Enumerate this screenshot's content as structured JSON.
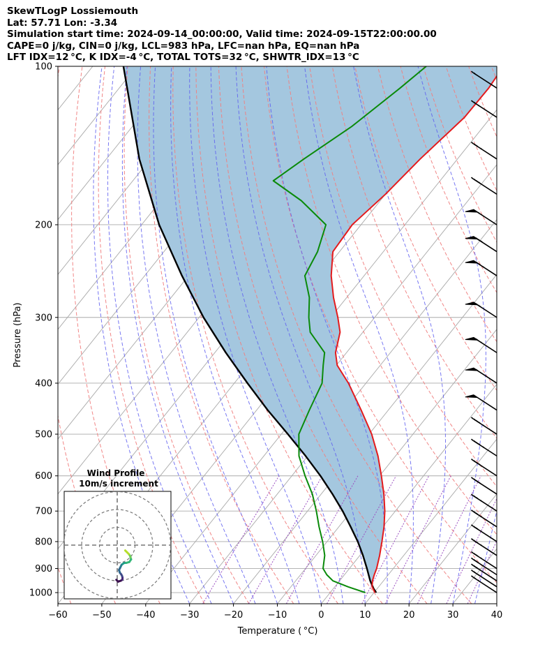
{
  "header": {
    "line1": "SkewTLogP Lossiemouth",
    "line2": "Lat: 57.71   Lon: -3.34",
    "line3": "Simulation start time: 2024-09-14_00:00:00, Valid time: 2024-09-15T22:00:00.00",
    "line4": "CAPE=0 j/kg, CIN=0 j/kg, LCL=983 hPa, LFC=nan hPa, EQ=nan hPa",
    "line5": "LFT IDX=12 °C, K IDX=-4 °C, TOTAL TOTS=32 °C, SHWTR_IDX=13 °C"
  },
  "chart_data": {
    "type": "skewt",
    "xlabel": "Temperature ( °C)",
    "ylabel": "Pressure (hPa)",
    "xlim": [
      -60,
      40
    ],
    "ylim": [
      1050,
      100
    ],
    "y_scale": "log",
    "x_ticks": [
      "−60",
      "−50",
      "−40",
      "−30",
      "−20",
      "−10",
      "0",
      "10",
      "20",
      "30",
      "40"
    ],
    "y_ticks": [
      "1000",
      "900",
      "800",
      "700",
      "600",
      "500",
      "400",
      "300",
      "200",
      "100"
    ],
    "temperature": {
      "pressure": [
        1000,
        975,
        950,
        925,
        900,
        850,
        800,
        750,
        700,
        650,
        600,
        550,
        500,
        450,
        400,
        370,
        350,
        320,
        300,
        275,
        250,
        225,
        200,
        175,
        150,
        125,
        110,
        100
      ],
      "values": [
        10.2,
        8.5,
        7.5,
        6.8,
        6.2,
        4.5,
        2.5,
        0.3,
        -2.4,
        -5.7,
        -9.6,
        -14.0,
        -19.4,
        -26.2,
        -34.0,
        -39.8,
        -42.5,
        -45.2,
        -48.4,
        -53.0,
        -57.5,
        -61.5,
        -62.0,
        -60.0,
        -58.5,
        -56.0,
        -55.8,
        -56.4
      ]
    },
    "dewpoint": {
      "pressure": [
        1000,
        975,
        950,
        925,
        900,
        850,
        800,
        750,
        700,
        650,
        600,
        550,
        500,
        450,
        400,
        370,
        350,
        320,
        300,
        275,
        250,
        225,
        200,
        180,
        165,
        150,
        130,
        110,
        100
      ],
      "values": [
        8.0,
        3.0,
        -1.5,
        -4.0,
        -6.0,
        -8.0,
        -11.0,
        -14.5,
        -18.0,
        -22.0,
        -27.0,
        -32.0,
        -36.0,
        -38.0,
        -40.0,
        -43.0,
        -45.0,
        -52.0,
        -55.0,
        -58.5,
        -63.5,
        -65.0,
        -68.0,
        -78.0,
        -88.0,
        -85.0,
        -80.0,
        -76.0,
        -74.0
      ]
    },
    "parcel": {
      "pressure": [
        1000,
        983,
        950,
        900,
        850,
        800,
        750,
        700,
        650,
        600,
        550,
        500,
        450,
        400,
        350,
        300,
        250,
        200,
        150,
        100
      ],
      "values": [
        10.5,
        9.2,
        7.0,
        4.0,
        0.7,
        -3.0,
        -7.3,
        -12.0,
        -17.4,
        -23.5,
        -30.5,
        -38.5,
        -47.5,
        -57.0,
        -67.5,
        -79.0,
        -91.5,
        -106.0,
        -122.5,
        -143.0
      ]
    },
    "wind_barbs": {
      "pressure": [
        1000,
        975,
        950,
        925,
        900,
        850,
        800,
        750,
        700,
        650,
        600,
        550,
        500,
        450,
        400,
        350,
        300,
        250,
        225,
        200,
        175,
        150,
        125,
        110
      ],
      "speed_kt": [
        25,
        25,
        30,
        30,
        35,
        35,
        35,
        35,
        35,
        40,
        40,
        45,
        45,
        50,
        60,
        65,
        70,
        75,
        80,
        55,
        40,
        35,
        25,
        20
      ]
    },
    "reference_lines": [
      "isotherms",
      "dry adiabats",
      "moist adiabats",
      "mixing ratio lines"
    ],
    "fill_between": "temperature and parcel",
    "inset": {
      "title_line1": "Wind Profile",
      "title_line2": "10m/s increment",
      "hodograph_u": [
        4.5,
        5.5,
        6.5,
        7.2,
        7.5,
        7.8,
        6.8,
        5.0,
        4.0,
        3.2,
        2.5,
        2.0,
        1.5,
        1.0,
        1.5,
        2.3,
        2.8,
        3.0,
        2.8,
        2.0,
        0.5,
        -0.5
      ],
      "hodograph_v": [
        -3.0,
        -4.0,
        -5.0,
        -6.0,
        -7.0,
        -8.0,
        -9.5,
        -10.0,
        -10.0,
        -10.5,
        -11.0,
        -12.0,
        -13.0,
        -14.0,
        -15.5,
        -16.5,
        -17.5,
        -18.5,
        -19.5,
        -20.0,
        -20.5,
        -19.5
      ]
    },
    "colors": {
      "temperature": "#e41a1c",
      "dewpoint": "#0a8a0a",
      "parcel": "#000000",
      "fill": "#a4c7df",
      "isotherm": "#aaaaaa",
      "dry_adiabat": "#f08080",
      "moist_adiabat": "#6060f0",
      "mixing_ratio": "#9b4fc1"
    }
  }
}
